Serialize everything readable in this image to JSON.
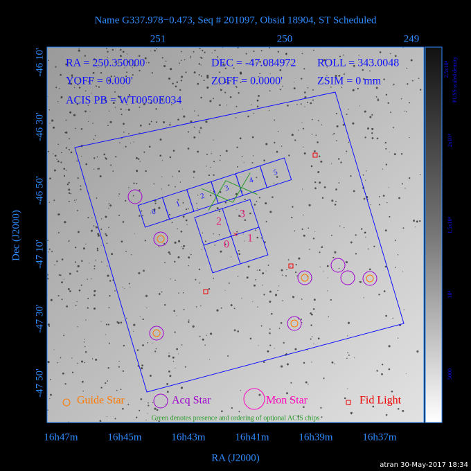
{
  "title": "Name G337.978−0.473, Seq # 201097, Obsid 18904, ST Scheduled",
  "top_axis_labels": [
    "251",
    "250",
    "249"
  ],
  "left_axis_labels": [
    "-46 10'",
    "-46 30'",
    "-46 50'",
    "-47 10'",
    "-47 30'",
    "-47 50'"
  ],
  "bottom_axis_labels": [
    "16h47m",
    "16h45m",
    "16h43m",
    "16h41m",
    "16h39m",
    "16h37m"
  ],
  "x_axis_label": "RA (J2000)",
  "y_axis_label": "Dec (J2000)",
  "info": [
    "RA = 250.350000",
    "DEC = -47.084972",
    "ROLL = 343.0048",
    "YOFF =   0.000'",
    "ZOFF =  0.0000'",
    "ZSIM = 0 mm",
    "ACIS PB = WT0050E034"
  ],
  "s_array_labels": [
    "0",
    "1",
    "2",
    "3",
    "4",
    "5"
  ],
  "i_array_labels": [
    "2",
    "3",
    "0",
    "1"
  ],
  "legend": [
    "Guide Star",
    "Acq Star",
    "Mon Star",
    "Fid Light"
  ],
  "note": "Green denotes presence and ordering of optional ACIS chips",
  "colorbar": {
    "label": "PUSS scaled density",
    "ticks": [
      "2.5x10⁴",
      "2x10⁴",
      "1.5x10⁴",
      "10⁴",
      "5000"
    ]
  },
  "footer": "atran 30-May-2017 18:34"
}
